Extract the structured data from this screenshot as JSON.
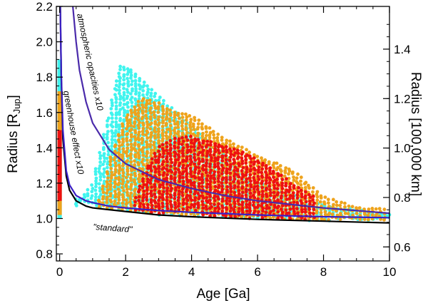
{
  "chart_data": {
    "type": "scatter",
    "title": "",
    "xlabel": "Age [Ga]",
    "ylabel": "Radius [R",
    "ylabel_sub": "Jup",
    "ylabel_close": "]",
    "y2label": "Radius [100,000 km]",
    "xlim": [
      -0.1,
      10.0
    ],
    "ylim": [
      0.76,
      2.2
    ],
    "x_ticks": [
      0,
      2,
      4,
      6,
      8,
      10
    ],
    "x_tick_labels": [
      "0",
      "2",
      "4",
      "6",
      "8",
      "10"
    ],
    "y_ticks": [
      0.8,
      1.0,
      1.2,
      1.4,
      1.6,
      1.8,
      2.0,
      2.2
    ],
    "y_tick_labels": [
      "0.8",
      "1.0",
      "1.2",
      "1.4",
      "1.6",
      "1.8",
      "2.0",
      "2.2"
    ],
    "y2_ticks": [
      0.6,
      0.8,
      1.0,
      1.2,
      1.4
    ],
    "y2_tick_labels": [
      "0.6",
      "0.8",
      "1.0",
      "1.2",
      "1.4"
    ],
    "y2_unit_factor": 0.71492,
    "grid": false,
    "colors": {
      "cyan": "#40f4ee",
      "orange": "#eea31c",
      "red": "#ee1010",
      "standard": "#000000",
      "greenhouse": "#3a1fc4",
      "opacities": "#4a2aaa"
    },
    "series": [
      {
        "name": "cyan",
        "color": "#40f4ee",
        "ridge": [
          [
            0.5,
            1.07
          ],
          [
            1.0,
            1.2
          ],
          [
            1.5,
            1.6
          ],
          [
            1.8,
            1.86
          ],
          [
            2.2,
            1.84
          ],
          [
            2.8,
            1.72
          ],
          [
            3.5,
            1.6
          ],
          [
            4.5,
            1.43
          ],
          [
            6.0,
            1.2
          ],
          [
            8.0,
            1.07
          ],
          [
            10.0,
            1.02
          ]
        ],
        "spread_above_floor": 0.08
      },
      {
        "name": "orange",
        "color": "#eea31c",
        "ridge": [
          [
            1.2,
            1.1
          ],
          [
            1.6,
            1.38
          ],
          [
            2.0,
            1.58
          ],
          [
            2.5,
            1.68
          ],
          [
            3.0,
            1.65
          ],
          [
            3.5,
            1.6
          ],
          [
            4.0,
            1.58
          ],
          [
            5.0,
            1.45
          ],
          [
            6.0,
            1.35
          ],
          [
            7.0,
            1.28
          ],
          [
            8.0,
            1.12
          ],
          [
            9.0,
            1.06
          ],
          [
            9.9,
            1.05
          ]
        ],
        "spread_above_floor": 0.06
      },
      {
        "name": "red",
        "color": "#ee1010",
        "ridge": [
          [
            2.3,
            1.12
          ],
          [
            2.6,
            1.28
          ],
          [
            3.0,
            1.4
          ],
          [
            3.5,
            1.45
          ],
          [
            4.0,
            1.46
          ],
          [
            4.8,
            1.42
          ],
          [
            5.5,
            1.38
          ],
          [
            6.0,
            1.33
          ],
          [
            6.6,
            1.26
          ],
          [
            7.2,
            1.17
          ],
          [
            7.8,
            1.12
          ]
        ],
        "spread_above_floor": 0.1
      }
    ],
    "age_bar": {
      "x": 0.0,
      "segments": [
        {
          "color": "#40f4ee",
          "from": 1.0,
          "to": 1.9
        },
        {
          "color": "#eea31c",
          "from": 1.02,
          "to": 1.72
        },
        {
          "color": "#ee1010",
          "from": 1.1,
          "to": 1.5
        }
      ]
    },
    "curves": [
      {
        "name": "standard",
        "label": "\"standard\"",
        "color": "#000000",
        "points": [
          [
            0.02,
            2.2
          ],
          [
            0.05,
            1.8
          ],
          [
            0.1,
            1.45
          ],
          [
            0.2,
            1.24
          ],
          [
            0.3,
            1.16
          ],
          [
            0.5,
            1.1
          ],
          [
            0.8,
            1.07
          ],
          [
            1.0,
            1.06
          ],
          [
            1.5,
            1.05
          ],
          [
            2.0,
            1.04
          ],
          [
            3.0,
            1.02
          ],
          [
            4.0,
            1.01
          ],
          [
            6.0,
            0.995
          ],
          [
            8.0,
            0.985
          ],
          [
            10.0,
            0.975
          ]
        ]
      },
      {
        "name": "greenhouse",
        "label": "greenhouse effect x10",
        "color": "#3a1fc4",
        "points": [
          [
            0.02,
            2.2
          ],
          [
            0.05,
            1.82
          ],
          [
            0.1,
            1.5
          ],
          [
            0.2,
            1.27
          ],
          [
            0.3,
            1.19
          ],
          [
            0.5,
            1.13
          ],
          [
            0.8,
            1.1
          ],
          [
            1.0,
            1.09
          ],
          [
            1.5,
            1.07
          ],
          [
            2.0,
            1.06
          ],
          [
            3.0,
            1.045
          ],
          [
            4.0,
            1.035
          ],
          [
            6.0,
            1.02
          ],
          [
            8.0,
            1.01
          ],
          [
            10.0,
            1.005
          ]
        ]
      },
      {
        "name": "atmospheric-opacities",
        "label": "atmospheric opacities x10",
        "color": "#4a2aaa",
        "points": [
          [
            0.4,
            2.2
          ],
          [
            0.5,
            2.0
          ],
          [
            0.6,
            1.84
          ],
          [
            0.8,
            1.66
          ],
          [
            1.0,
            1.54
          ],
          [
            1.5,
            1.39
          ],
          [
            2.0,
            1.31
          ],
          [
            3.0,
            1.22
          ],
          [
            4.0,
            1.17
          ],
          [
            5.0,
            1.13
          ],
          [
            6.0,
            1.1
          ],
          [
            8.0,
            1.06
          ],
          [
            10.0,
            1.03
          ]
        ]
      }
    ],
    "annotations": [
      {
        "text": "\"standard\"",
        "target": "standard"
      },
      {
        "text": "greenhouse effect x10",
        "target": "greenhouse"
      },
      {
        "text": "atmospheric opacities x10",
        "target": "atmospheric-opacities"
      }
    ]
  }
}
